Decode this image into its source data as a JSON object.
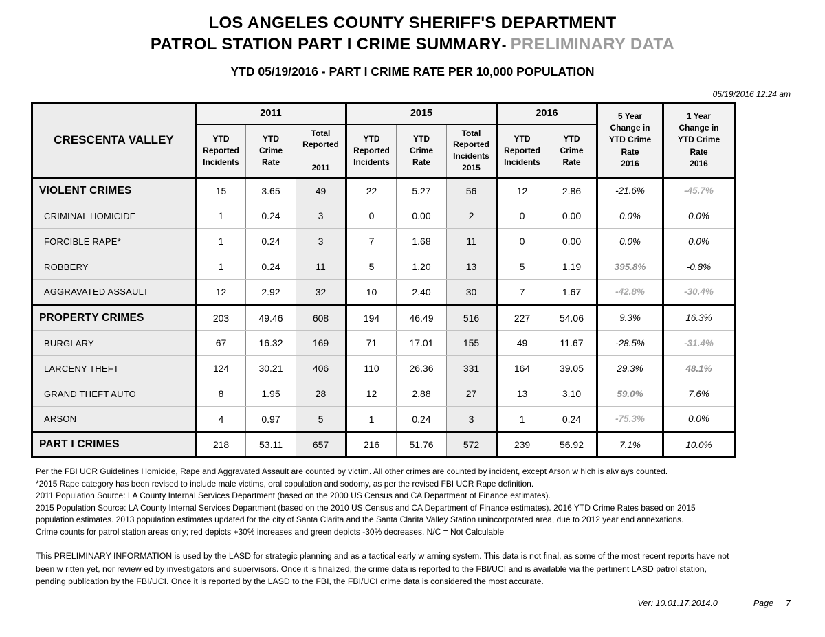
{
  "page": {
    "title_line1": "LOS ANGELES COUNTY SHERIFF'S DEPARTMENT",
    "title_line2": "PATROL STATION PART I CRIME SUMMARY",
    "title_line2_separator": "- ",
    "title_line2_suffix": "PRELIMINARY DATA",
    "subtitle": "YTD 05/19/2016 - PART I CRIME RATE PER 10,000 POPULATION",
    "generated_at": "05/19/2016 12:24 am"
  },
  "colors": {
    "preliminary_text": "#9c9c9c",
    "increase_change_text": "#8d8d8d",
    "decrease_change_text": "#a8a8a8",
    "shaded_cell_bg": "#ececec",
    "label_cell_bg": "#ececec",
    "header_cell_bg": "#f2f2f2"
  },
  "table": {
    "station": "CRESCENTA VALLEY",
    "groups": [
      {
        "label": "2011",
        "columns": [
          "YTD\nReported\nIncidents",
          "YTD\nCrime\nRate",
          "Total\nReported\n\n2011"
        ]
      },
      {
        "label": "2015",
        "columns": [
          "YTD\nReported\nIncidents",
          "YTD\nCrime\nRate",
          "Total\nReported\nIncidents\n2015"
        ]
      },
      {
        "label": "2016",
        "columns": [
          "YTD\nReported\nIncidents",
          "YTD\nCrime\nRate"
        ]
      }
    ],
    "change_columns": [
      "5 Year\nChange in\nYTD Crime\nRate\n2016",
      "1 Year\nChange in\nYTD Crime\nRate\n2016"
    ],
    "rows": [
      {
        "label": "VIOLENT CRIMES",
        "type": "section",
        "values": [
          "15",
          "3.65",
          "49",
          "22",
          "5.27",
          "56",
          "12",
          "2.86"
        ],
        "chg5": {
          "v": "-21.6%",
          "tone": "normal"
        },
        "chg1": {
          "v": "-45.7%",
          "tone": "down"
        }
      },
      {
        "label": "CRIMINAL HOMICIDE",
        "type": "sub",
        "values": [
          "1",
          "0.24",
          "3",
          "0",
          "0.00",
          "2",
          "0",
          "0.00"
        ],
        "chg5": {
          "v": "0.0%",
          "tone": "normal"
        },
        "chg1": {
          "v": "0.0%",
          "tone": "normal"
        }
      },
      {
        "label": "FORCIBLE RAPE*",
        "type": "sub",
        "values": [
          "1",
          "0.24",
          "3",
          "7",
          "1.68",
          "11",
          "0",
          "0.00"
        ],
        "chg5": {
          "v": "0.0%",
          "tone": "normal"
        },
        "chg1": {
          "v": "0.0%",
          "tone": "normal"
        }
      },
      {
        "label": "ROBBERY",
        "type": "sub",
        "values": [
          "1",
          "0.24",
          "11",
          "5",
          "1.20",
          "13",
          "5",
          "1.19"
        ],
        "chg5": {
          "v": "395.8%",
          "tone": "up"
        },
        "chg1": {
          "v": "-0.8%",
          "tone": "normal"
        }
      },
      {
        "label": "AGGRAVATED ASSAULT",
        "type": "sub",
        "values": [
          "12",
          "2.92",
          "32",
          "10",
          "2.40",
          "30",
          "7",
          "1.67"
        ],
        "chg5": {
          "v": "-42.8%",
          "tone": "down"
        },
        "chg1": {
          "v": "-30.4%",
          "tone": "down"
        }
      },
      {
        "label": "PROPERTY CRIMES",
        "type": "section",
        "values": [
          "203",
          "49.46",
          "608",
          "194",
          "46.49",
          "516",
          "227",
          "54.06"
        ],
        "chg5": {
          "v": "9.3%",
          "tone": "normal"
        },
        "chg1": {
          "v": "16.3%",
          "tone": "normal"
        }
      },
      {
        "label": "BURGLARY",
        "type": "sub",
        "values": [
          "67",
          "16.32",
          "169",
          "71",
          "17.01",
          "155",
          "49",
          "11.67"
        ],
        "chg5": {
          "v": "-28.5%",
          "tone": "normal"
        },
        "chg1": {
          "v": "-31.4%",
          "tone": "down"
        }
      },
      {
        "label": "LARCENY THEFT",
        "type": "sub",
        "values": [
          "124",
          "30.21",
          "406",
          "110",
          "26.36",
          "331",
          "164",
          "39.05"
        ],
        "chg5": {
          "v": "29.3%",
          "tone": "normal"
        },
        "chg1": {
          "v": "48.1%",
          "tone": "up"
        }
      },
      {
        "label": "GRAND THEFT AUTO",
        "type": "sub",
        "values": [
          "8",
          "1.95",
          "28",
          "12",
          "2.88",
          "27",
          "13",
          "3.10"
        ],
        "chg5": {
          "v": "59.0%",
          "tone": "up"
        },
        "chg1": {
          "v": "7.6%",
          "tone": "normal"
        }
      },
      {
        "label": "ARSON",
        "type": "sub",
        "values": [
          "4",
          "0.97",
          "5",
          "1",
          "0.24",
          "3",
          "1",
          "0.24"
        ],
        "chg5": {
          "v": "-75.3%",
          "tone": "down"
        },
        "chg1": {
          "v": "0.0%",
          "tone": "normal"
        }
      },
      {
        "label": "PART I CRIMES",
        "type": "total",
        "values": [
          "218",
          "53.11",
          "657",
          "216",
          "51.76",
          "572",
          "239",
          "56.92"
        ],
        "chg5": {
          "v": "7.1%",
          "tone": "normal"
        },
        "chg1": {
          "v": "10.0%",
          "tone": "normal"
        }
      }
    ]
  },
  "footnotes": [
    "Per the FBI UCR Guidelines Homicide, Rape and Aggravated Assault are counted by victim. All other crimes are counted by incident, except Arson w hich is alw ays counted.",
    "*2015 Rape category has been revised to include male victims, oral copulation and sodomy, as per the revised FBI UCR Rape definition.",
    "2011 Population Source: LA County Internal Services Department (based on the 2000 US Census and CA Department of Finance estimates).",
    "2015 Population Source: LA County Internal Services Department (based on the 2010 US Census and CA Department of Finance estimates).  2016 YTD Crime Rates based on 2015",
    "population estimates. 2013 population estimates updated for the city of Santa Clarita and the Santa Clarita Valley Station unincorporated area, due to 2012 year end annexations.",
    "Crime counts for patrol station areas only; red depicts +30% increases and green depicts -30% decreases. N/C = Not Calculable"
  ],
  "disclaimer": [
    "This PRELIMINARY INFORMATION is used by the LASD for strategic planning and as a tactical early w arning system. This data is not final, as some of the most recent reports have not",
    "been w ritten yet, nor review ed by investigators and supervisors. Once it is finalized, the crime data is reported to the FBI/UCI and is available via the pertinent LASD patrol station,",
    "pending publication by the FBI/UCI. Once it is reported by the LASD to the FBI, the FBI/UCI crime data is considered the most accurate."
  ],
  "footer": {
    "version": "Ver:  10.01.17.2014.0",
    "page_label": "Page",
    "page_number": "7"
  }
}
